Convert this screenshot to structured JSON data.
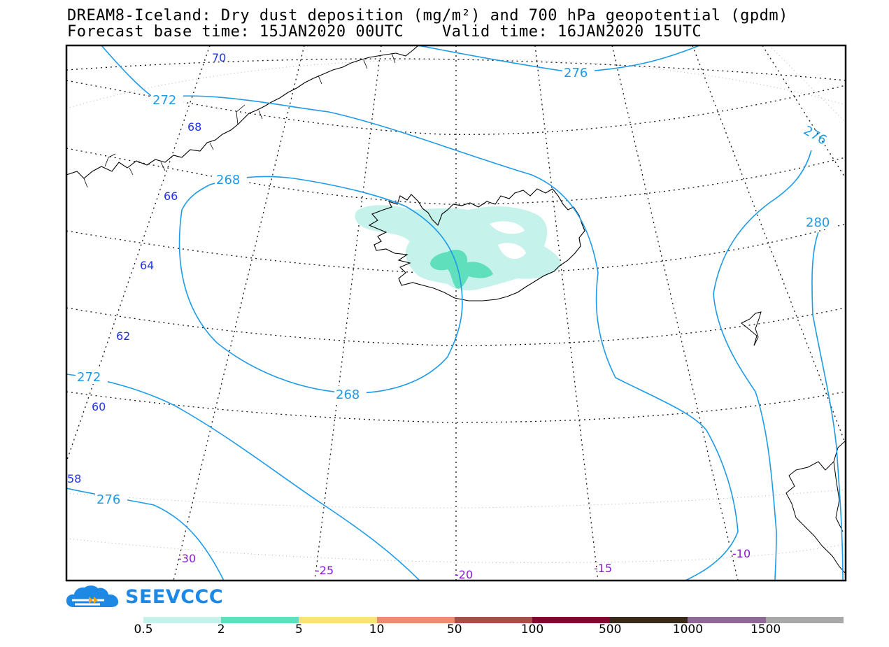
{
  "title": {
    "line1": "DREAM8-Iceland: Dry dust deposition (mg/m²) and 700 hPa geopotential (gpdm)",
    "line2": "Forecast base time: 15JAN2020 00UTC    Valid time: 16JAN2020 15UTC"
  },
  "map": {
    "latitude_labels": [
      "70",
      "68",
      "66",
      "64",
      "62",
      "60",
      "58"
    ],
    "longitude_labels": [
      "-30",
      "-25",
      "-20",
      "-15",
      "-10"
    ],
    "contour_labels": [
      "276",
      "272",
      "268",
      "268",
      "272",
      "276",
      "276",
      "280"
    ],
    "contour_color": "#1e9be8",
    "lat_label_color": "#2233ee",
    "lon_label_color": "#8a18d8"
  },
  "logo": {
    "text": "SEEVCCC",
    "icon": "cloud-logo-icon",
    "color": "#1e88e5"
  },
  "colorbar": {
    "colors": [
      "#c5f2ea",
      "#5fdfbc",
      "#f9e27a",
      "#ea8c6e",
      "#a84e48",
      "#7e0a30",
      "#3a2a1a",
      "#8e6897",
      "#a8a8a8"
    ],
    "labels": [
      "0.5",
      "2",
      "5",
      "10",
      "50",
      "100",
      "500",
      "1000",
      "1500"
    ]
  }
}
